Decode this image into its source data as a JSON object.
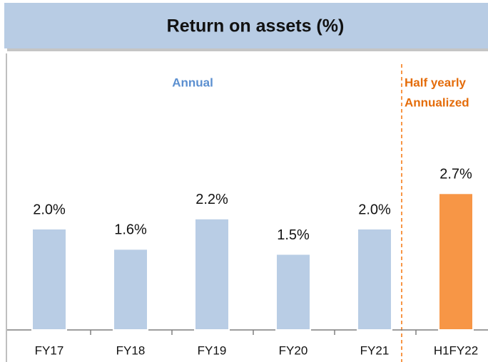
{
  "chart_data": {
    "type": "bar",
    "title": "Return on assets (%)",
    "categories": [
      "FY17",
      "FY18",
      "FY19",
      "FY20",
      "FY21",
      "H1FY22"
    ],
    "values": [
      2.0,
      1.6,
      2.2,
      1.5,
      2.0,
      2.7
    ],
    "value_labels": [
      "2.0%",
      "1.6%",
      "2.2%",
      "1.5%",
      "2.0%",
      "2.7%"
    ],
    "colors": [
      "#b9cde5",
      "#b9cde5",
      "#b9cde5",
      "#b9cde5",
      "#b9cde5",
      "#f79646"
    ],
    "ylim": [
      0,
      3.5
    ],
    "annotations": [
      {
        "text": "Annual",
        "color": "#5b8fd0"
      },
      {
        "text": "Half yearly",
        "color": "#e46c0a"
      },
      {
        "text": "Annualized",
        "color": "#e46c0a"
      }
    ]
  }
}
